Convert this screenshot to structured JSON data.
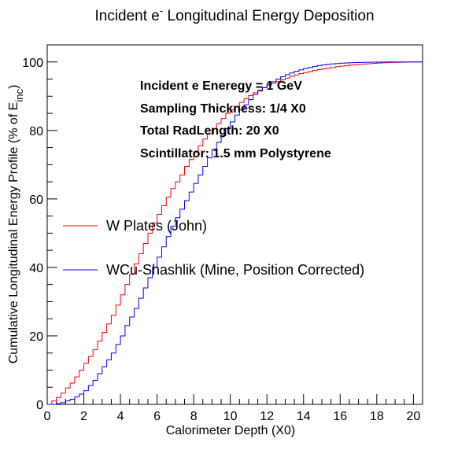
{
  "chart_data": {
    "type": "line",
    "title": {
      "prefix": "Incident e",
      "superscript": "-",
      "suffix": " Longitudinal Energy Deposition"
    },
    "xlabel": "Calorimeter Depth (X0)",
    "ylabel": {
      "text": "Cumulative Longitudinal Energy Profile (% of E",
      "subscript": "inc",
      "close": ")"
    },
    "xlim": [
      0,
      20.5
    ],
    "ylim": [
      0,
      105
    ],
    "x_ticks": [
      0,
      2,
      4,
      6,
      8,
      10,
      12,
      14,
      16,
      18,
      20
    ],
    "y_ticks": [
      0,
      20,
      40,
      60,
      80,
      100
    ],
    "grid": false,
    "legend_position": "middle-left",
    "annotations": [
      "Incident e Eneregy = 1 GeV",
      "Sampling Thickness: 1/4 X0",
      "Total RadLength: 20 X0",
      "Scintillator: 1.5 mm Polystyrene"
    ],
    "step_width": 0.25,
    "series": [
      {
        "name": "W Plates (John)",
        "color": "#ff0000",
        "values": [
          0,
          1,
          2,
          3.3,
          4.8,
          6.2,
          8,
          10,
          12,
          14,
          16,
          18.5,
          21,
          23.5,
          26,
          29,
          32,
          35,
          38,
          41,
          44,
          47,
          50,
          53,
          55.5,
          58,
          60.5,
          63,
          65,
          67,
          69.5,
          71.5,
          73.5,
          75.5,
          77.5,
          79,
          80.5,
          82,
          83.5,
          85,
          86,
          87,
          88.2,
          89.3,
          90.2,
          91,
          91.8,
          92.5,
          93.2,
          93.8,
          94.3,
          94.8,
          95.3,
          95.8,
          96.2,
          96.6,
          96.9,
          97.2,
          97.5,
          97.8,
          98,
          98.2,
          98.4,
          98.6,
          98.8,
          98.95,
          99.1,
          99.2,
          99.3,
          99.4,
          99.5,
          99.6,
          99.7,
          99.75,
          99.8,
          99.85,
          99.9,
          99.93,
          99.96,
          99.98,
          100,
          100
        ]
      },
      {
        "name": "WCu-Shashlik (Mine, Position Corrected)",
        "color": "#0000ff",
        "values": [
          0,
          0,
          0.2,
          0.5,
          1,
          1.5,
          2.2,
          3,
          4,
          5.5,
          7,
          9,
          11,
          13,
          15,
          17.5,
          20,
          23,
          25.5,
          28,
          31,
          34,
          37,
          40,
          43,
          46,
          49,
          52,
          54.5,
          57,
          59.5,
          62,
          64.5,
          67,
          69.5,
          72,
          74.5,
          76.5,
          78.5,
          80.5,
          82.5,
          84.5,
          86,
          87.5,
          89,
          90.5,
          91.5,
          92.5,
          93.5,
          94.2,
          95,
          95.7,
          96.3,
          96.8,
          97.3,
          97.7,
          98.1,
          98.4,
          98.7,
          98.95,
          99.15,
          99.3,
          99.45,
          99.55,
          99.65,
          99.72,
          99.78,
          99.83,
          99.87,
          99.9,
          99.93,
          99.95,
          99.97,
          99.98,
          99.99,
          100,
          100,
          100,
          100,
          100,
          100,
          100
        ]
      }
    ]
  }
}
